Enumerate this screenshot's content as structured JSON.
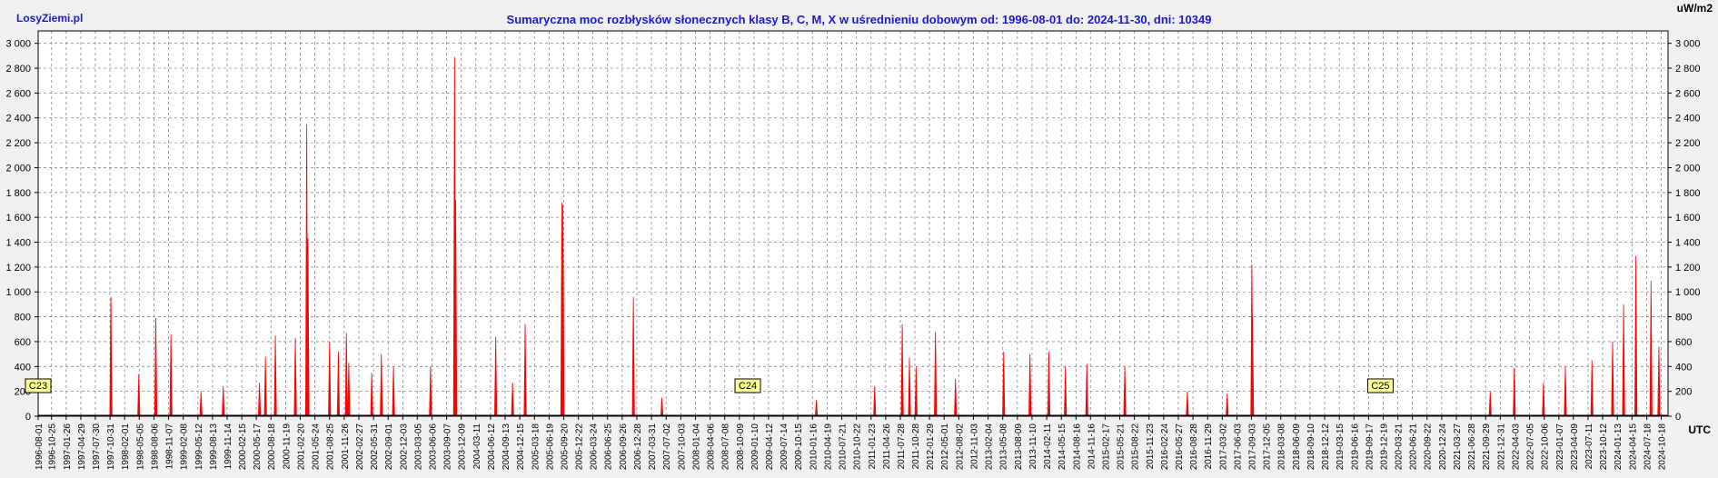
{
  "header": {
    "brand": "LosyZiemi.pl",
    "title": "Sumaryczna moc rozbłysków słonecznych klasy B, C, M, X w uśrednieniu dobowym od: 1996-08-01 do: 2024-11-30, dni: 10349",
    "unit": "uW/m2",
    "x_unit": "UTC"
  },
  "colors": {
    "background": "#f0f0f0",
    "plot_background": "#ffffff",
    "grid": "#8a8a8a",
    "flare_power": "#ff0000",
    "baseline": "#000000",
    "cycle_label_bg": "#ffff99",
    "title": "#1a1acc"
  },
  "chart_data": {
    "type": "line",
    "title": "Sumaryczna moc rozbłysków słonecznych klasy B, C, M, X w uśrednieniu dobowym od: 1996-08-01 do: 2024-11-30, dni: 10349",
    "xlabel": "UTC",
    "ylabel": "uW/m2",
    "x_range": [
      "1996-08-01",
      "2024-11-30"
    ],
    "ylim": [
      0,
      3100
    ],
    "y_ticks": [
      0,
      200,
      400,
      600,
      800,
      1000,
      1200,
      1400,
      1600,
      1800,
      2000,
      2200,
      2400,
      2600,
      2800,
      3000
    ],
    "y_tick_labels": [
      "0",
      "200",
      "400",
      "600",
      "800",
      "1 000",
      "1 200",
      "1 400",
      "1 600",
      "1 800",
      "2 000",
      "2 200",
      "2 400",
      "2 600",
      "2 800",
      "3 000"
    ],
    "x_tick_labels": [
      "1996-08-01",
      "1996-10-25",
      "1997-01-26",
      "1997-04-29",
      "1997-07-30",
      "1997-10-31",
      "1998-02-01",
      "1998-05-05",
      "1998-08-06",
      "1998-11-07",
      "1999-02-08",
      "1999-05-12",
      "1999-08-13",
      "1999-11-14",
      "2000-02-15",
      "2000-05-17",
      "2000-08-18",
      "2000-11-19",
      "2001-02-20",
      "2001-05-24",
      "2001-08-25",
      "2001-11-26",
      "2002-02-27",
      "2002-05-31",
      "2002-09-01",
      "2002-12-03",
      "2003-03-05",
      "2003-06-06",
      "2003-09-07",
      "2003-12-09",
      "2004-03-11",
      "2004-06-12",
      "2004-09-13",
      "2004-12-15",
      "2005-03-18",
      "2005-06-19",
      "2005-09-20",
      "2005-12-22",
      "2006-03-24",
      "2006-06-25",
      "2006-09-26",
      "2006-12-28",
      "2007-03-31",
      "2007-07-02",
      "2007-10-03",
      "2008-01-04",
      "2008-04-06",
      "2008-07-08",
      "2008-10-09",
      "2009-01-10",
      "2009-04-12",
      "2009-07-14",
      "2009-10-15",
      "2010-01-16",
      "2010-04-19",
      "2010-07-21",
      "2010-10-22",
      "2011-01-23",
      "2011-04-26",
      "2011-07-28",
      "2011-10-28",
      "2012-01-29",
      "2012-05-01",
      "2012-08-02",
      "2012-11-03",
      "2013-02-04",
      "2013-05-08",
      "2013-08-09",
      "2013-11-10",
      "2014-02-11",
      "2014-05-15",
      "2014-08-16",
      "2014-11-16",
      "2015-02-17",
      "2015-05-21",
      "2015-08-22",
      "2015-11-23",
      "2016-02-24",
      "2016-05-27",
      "2016-08-28",
      "2016-11-29",
      "2017-03-02",
      "2017-06-03",
      "2017-09-03",
      "2017-12-05",
      "2018-03-08",
      "2018-06-09",
      "2018-09-10",
      "2018-12-12",
      "2019-03-15",
      "2019-06-16",
      "2019-09-17",
      "2019-12-19",
      "2020-03-21",
      "2020-06-21",
      "2020-09-22",
      "2020-12-24",
      "2021-03-27",
      "2021-06-28",
      "2021-09-29",
      "2021-12-31",
      "2022-04-03",
      "2022-07-05",
      "2022-10-06",
      "2023-01-07",
      "2023-04-09",
      "2023-07-11",
      "2023-10-12",
      "2024-01-13",
      "2024-04-15",
      "2024-07-18",
      "2024-10-18"
    ],
    "cycle_labels": [
      {
        "label": "C23",
        "date": "1996-08-01"
      },
      {
        "label": "C24",
        "date": "2008-12-01"
      },
      {
        "label": "C25",
        "date": "2019-12-01"
      }
    ],
    "grid": true,
    "series": [
      {
        "color": "#ff0000",
        "peaks": [
          {
            "date": "1997-11-06",
            "value": 960
          },
          {
            "date": "1998-05-02",
            "value": 340
          },
          {
            "date": "1998-08-18",
            "value": 790
          },
          {
            "date": "1998-11-22",
            "value": 660
          },
          {
            "date": "1999-06-01",
            "value": 200
          },
          {
            "date": "1999-10-20",
            "value": 240
          },
          {
            "date": "2000-06-06",
            "value": 270
          },
          {
            "date": "2000-07-14",
            "value": 480
          },
          {
            "date": "2000-09-15",
            "value": 650
          },
          {
            "date": "2001-01-20",
            "value": 630
          },
          {
            "date": "2001-04-02",
            "value": 2350
          },
          {
            "date": "2001-04-10",
            "value": 1430
          },
          {
            "date": "2001-08-25",
            "value": 600
          },
          {
            "date": "2001-10-20",
            "value": 520
          },
          {
            "date": "2001-12-10",
            "value": 670
          },
          {
            "date": "2001-12-25",
            "value": 430
          },
          {
            "date": "2002-05-20",
            "value": 350
          },
          {
            "date": "2002-07-20",
            "value": 500
          },
          {
            "date": "2002-10-05",
            "value": 400
          },
          {
            "date": "2003-05-28",
            "value": 400
          },
          {
            "date": "2003-10-28",
            "value": 2890
          },
          {
            "date": "2003-11-04",
            "value": 1740
          },
          {
            "date": "2004-07-15",
            "value": 640
          },
          {
            "date": "2004-10-30",
            "value": 270
          },
          {
            "date": "2005-01-18",
            "value": 740
          },
          {
            "date": "2005-09-08",
            "value": 1720
          },
          {
            "date": "2005-09-15",
            "value": 1700
          },
          {
            "date": "2006-12-06",
            "value": 960
          },
          {
            "date": "2007-06-05",
            "value": 150
          },
          {
            "date": "2010-02-10",
            "value": 130
          },
          {
            "date": "2011-02-15",
            "value": 240
          },
          {
            "date": "2011-08-09",
            "value": 740
          },
          {
            "date": "2011-09-24",
            "value": 470
          },
          {
            "date": "2011-11-05",
            "value": 400
          },
          {
            "date": "2012-03-07",
            "value": 680
          },
          {
            "date": "2012-07-12",
            "value": 300
          },
          {
            "date": "2013-05-14",
            "value": 520
          },
          {
            "date": "2013-10-28",
            "value": 500
          },
          {
            "date": "2014-02-25",
            "value": 520
          },
          {
            "date": "2014-06-10",
            "value": 400
          },
          {
            "date": "2014-10-24",
            "value": 420
          },
          {
            "date": "2015-06-22",
            "value": 400
          },
          {
            "date": "2016-07-23",
            "value": 200
          },
          {
            "date": "2017-04-02",
            "value": 180
          },
          {
            "date": "2017-09-06",
            "value": 1220
          },
          {
            "date": "2017-09-10",
            "value": 800
          },
          {
            "date": "2021-10-28",
            "value": 200
          },
          {
            "date": "2022-03-30",
            "value": 390
          },
          {
            "date": "2022-10-01",
            "value": 270
          },
          {
            "date": "2023-02-17",
            "value": 400
          },
          {
            "date": "2023-08-05",
            "value": 450
          },
          {
            "date": "2023-12-14",
            "value": 600
          },
          {
            "date": "2024-02-22",
            "value": 900
          },
          {
            "date": "2024-05-10",
            "value": 1290
          },
          {
            "date": "2024-08-14",
            "value": 1090
          },
          {
            "date": "2024-10-03",
            "value": 560
          }
        ]
      }
    ]
  }
}
